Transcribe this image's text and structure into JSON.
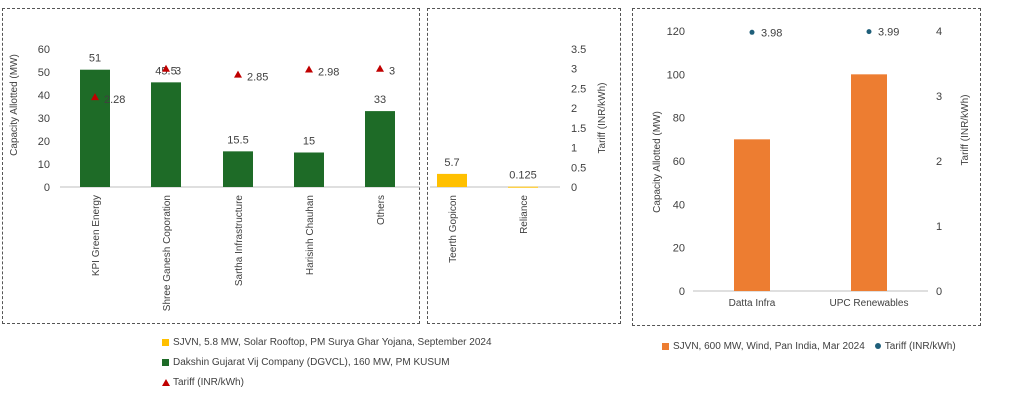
{
  "colors": {
    "sjvn_rooftop": "#ffc000",
    "dgvcl": "#1e6b27",
    "tariff_triangle": "#c00000",
    "sjvn_wind": "#ed7d31",
    "tariff_dot": "#1f5f7a"
  },
  "chart_data": [
    {
      "type": "bar",
      "categories": [
        "KPI Green Energy",
        "Shree Ganesh Coporation",
        "Sartha Infrastructure",
        "Harisinh Chauhan",
        "Others"
      ],
      "series": [
        {
          "name": "Dakshin Gujarat Vij Company (DGVCL), 160 MW, PM KUSUM",
          "values": [
            51,
            45.5,
            15.5,
            15,
            33
          ]
        },
        {
          "name": "Tariff (INR/kWh)",
          "values": [
            2.28,
            3,
            2.85,
            2.98,
            3
          ],
          "value_labels": [
            "2.28",
            "3",
            "2.85",
            "2.98",
            "3"
          ],
          "marker": "triangle"
        }
      ],
      "value_labels": [
        "51",
        "45.5",
        "15.5",
        "15",
        "33"
      ],
      "ylabel": "Capacity Allotted (MW)",
      "ylim": [
        0,
        60
      ],
      "yticks": [
        "0",
        "10",
        "20",
        "30",
        "40",
        "50",
        "60"
      ],
      "y2lim": [
        0,
        3.5
      ]
    },
    {
      "type": "bar",
      "categories": [
        "Teerth Gopicon",
        "Reliance"
      ],
      "series": [
        {
          "name": "SJVN, 5.8 MW, Solar Rooftop, PM Surya Ghar Yojana, September 2024",
          "values": [
            5.7,
            0.125
          ]
        }
      ],
      "value_labels": [
        "5.7",
        "0.125"
      ],
      "ylim": [
        0,
        60
      ],
      "y2label": "Tariff (INR/kWh)",
      "y2lim": [
        0,
        3.5
      ],
      "y2ticks": [
        "0",
        "0.5",
        "1",
        "1.5",
        "2",
        "2.5",
        "3",
        "3.5"
      ]
    },
    {
      "type": "bar",
      "categories": [
        "Datta Infra",
        "UPC Renewables"
      ],
      "series": [
        {
          "name": "SJVN, 600 MW, Wind, Pan India, Mar 2024",
          "values": [
            70,
            100
          ]
        },
        {
          "name": "Tariff (INR/kWh)",
          "values": [
            3.98,
            3.99
          ],
          "value_labels": [
            "3.98",
            "3.99"
          ],
          "marker": "dot"
        }
      ],
      "ylabel": "Capacity Allotted (MW)",
      "ylim": [
        0,
        120
      ],
      "yticks": [
        "0",
        "20",
        "40",
        "60",
        "80",
        "100",
        "120"
      ],
      "y2label": "Tariff (INR/kWh)",
      "y2lim": [
        0,
        4
      ],
      "y2ticks": [
        "0",
        "1",
        "2",
        "3",
        "4"
      ]
    }
  ],
  "legends": {
    "left": [
      {
        "label": "SJVN, 5.8 MW, Solar Rooftop, PM Surya Ghar Yojana, September 2024"
      },
      {
        "label": "Dakshin Gujarat Vij Company (DGVCL), 160 MW, PM KUSUM"
      },
      {
        "label": "Tariff (INR/kWh)"
      }
    ],
    "right": [
      {
        "label": "SJVN, 600 MW, Wind, Pan India, Mar 2024"
      },
      {
        "label": "Tariff (INR/kWh)"
      }
    ]
  }
}
